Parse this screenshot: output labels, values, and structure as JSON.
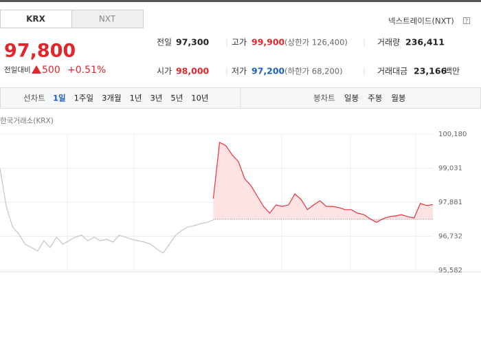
{
  "tabs": [
    "KRX",
    "NXT"
  ],
  "nxt_link": "넥스트레이드(NXT)",
  "help_icon": "?",
  "price": "97,800",
  "change": {
    "label": "전일대비",
    "amount": "500",
    "percent": "+0.51%"
  },
  "stats": [
    {
      "label": "전일",
      "value": "97,300"
    },
    {
      "label": "고가",
      "value": "99,900",
      "sub": "(상한가 126,400)"
    },
    {
      "label": "거래량",
      "value": "236,411"
    },
    {
      "label": "시가",
      "value": "98,000"
    },
    {
      "label": "저가",
      "value": "97,200",
      "sub": "(하한가 68,200)"
    },
    {
      "label": "거래대금",
      "value": "23,166",
      "unit": "백만"
    }
  ],
  "toolbar": {
    "line_label": "선차트",
    "line_periods": [
      "1일",
      "1주일",
      "3개월",
      "1년",
      "3년",
      "5년",
      "10년"
    ],
    "candle_label": "봉차트",
    "candle_periods": [
      "일봉",
      "주봉",
      "월봉"
    ]
  },
  "chart_data": {
    "type": "line",
    "title": "한국거래소(KRX)",
    "ylim": [
      95582,
      100180
    ],
    "yticks": [
      {
        "value": 100180,
        "label": "100,180"
      },
      {
        "value": 99031,
        "label": "99,031"
      },
      {
        "value": 97881,
        "label": "97,881"
      },
      {
        "value": 96732,
        "label": "96,732"
      },
      {
        "value": 95582,
        "label": "95,582"
      }
    ],
    "grid": true,
    "baseline": 97300,
    "series": [
      {
        "color": "#c4c4c4",
        "values": [
          99020,
          97740,
          97050,
          96810,
          96465,
          96350,
          96230,
          96580,
          96350,
          96700,
          96465,
          96580,
          96700,
          96770,
          96580,
          96700,
          96580,
          96630,
          96535,
          96770,
          96700,
          96630,
          96580,
          96535,
          96465,
          96300,
          96160,
          96465,
          96770,
          96930,
          97050,
          97090,
          97160,
          97200,
          97280,
          null,
          null,
          null,
          null,
          null,
          null,
          null,
          null,
          null,
          null,
          null,
          null,
          null,
          null,
          null,
          null,
          null,
          null,
          null,
          null,
          null,
          null,
          null,
          null,
          null,
          null,
          null,
          null,
          null,
          null,
          null,
          null,
          null,
          null,
          null
        ]
      },
      {
        "color": "#e8313a",
        "values": [
          null,
          null,
          null,
          null,
          null,
          null,
          null,
          null,
          null,
          null,
          null,
          null,
          null,
          null,
          null,
          null,
          null,
          null,
          null,
          null,
          null,
          null,
          null,
          null,
          null,
          null,
          null,
          null,
          null,
          null,
          null,
          null,
          null,
          null,
          98000,
          99900,
          99790,
          99480,
          99250,
          98670,
          98440,
          98090,
          97740,
          97510,
          97790,
          97740,
          97790,
          98160,
          97970,
          97630,
          97790,
          97930,
          97740,
          97740,
          97700,
          97630,
          97630,
          97510,
          97460,
          97320,
          97200,
          97320,
          97390,
          97420,
          97460,
          97390,
          97350,
          97840,
          97770,
          97800
        ]
      }
    ]
  }
}
